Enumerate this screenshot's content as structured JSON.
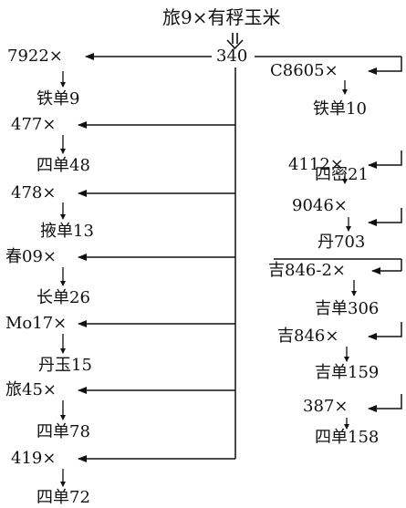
{
  "title": "旅9×有稃玉米",
  "center_node": "340",
  "left_chain": [
    {
      "cross": "7922×",
      "product": "铁单9"
    },
    {
      "cross": "477×",
      "product": "四单48"
    },
    {
      "cross": "478×",
      "product": "掖单13"
    },
    {
      "cross": "春09×",
      "product": "长单26"
    },
    {
      "cross": "Mo17×",
      "product": "丹玉15"
    },
    {
      "cross": "旅45×",
      "product": "四单78"
    },
    {
      "cross": "419×",
      "product": "四单72"
    }
  ],
  "right_chain": [
    {
      "cross": "C8605×",
      "product": "铁单10"
    },
    {
      "cross": "4112×",
      "product": "四密21"
    },
    {
      "cross": "9046×",
      "product": "丹703"
    },
    {
      "cross": "吉846-2×",
      "product": "吉单306"
    },
    {
      "cross": "吉846×",
      "product": "吉单159"
    },
    {
      "cross": "387×",
      "product": "四单158"
    }
  ]
}
